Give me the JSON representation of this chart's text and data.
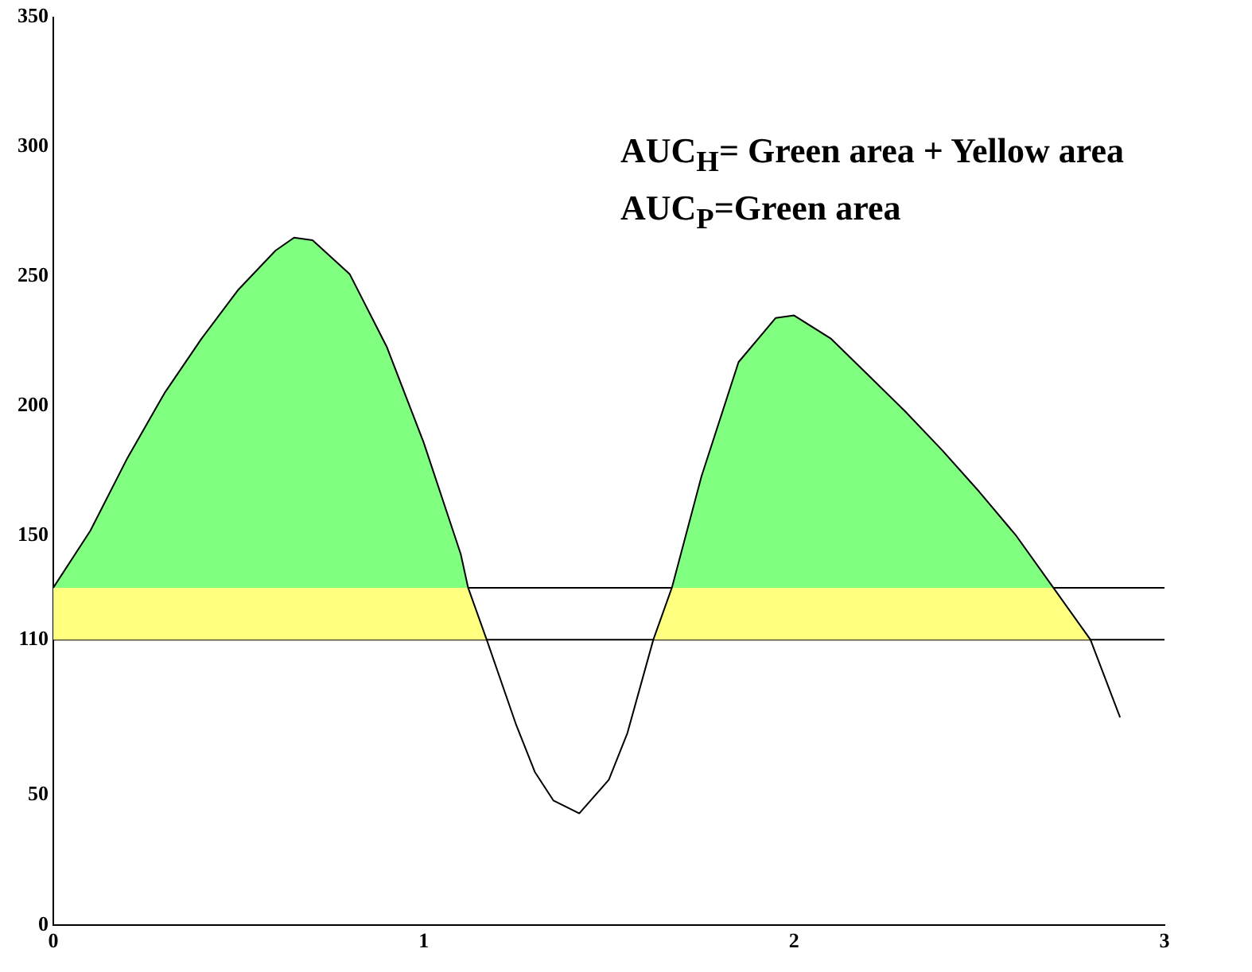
{
  "chart_data": {
    "type": "line",
    "x": [
      0,
      0.1,
      0.2,
      0.3,
      0.4,
      0.5,
      0.6,
      0.65,
      0.7,
      0.8,
      0.9,
      1.0,
      1.1,
      1.12,
      1.17,
      1.25,
      1.3,
      1.35,
      1.42,
      1.5,
      1.55,
      1.62,
      1.67,
      1.75,
      1.85,
      1.95,
      2.0,
      2.1,
      2.2,
      2.3,
      2.4,
      2.5,
      2.6,
      2.7,
      2.8,
      2.88
    ],
    "series": [
      {
        "color": "#000000",
        "values": [
          130,
          152,
          180,
          205,
          226,
          245,
          260,
          265,
          264,
          251,
          223,
          186,
          143,
          130,
          110,
          77,
          59,
          48,
          43,
          56,
          74,
          110,
          130,
          173,
          217,
          234,
          235,
          226,
          212,
          198,
          183,
          167,
          150,
          130,
          110,
          80
        ]
      },
      {
        "type": "area",
        "color": "#80ff80",
        "values": [
          130,
          152,
          180,
          205,
          226,
          245,
          260,
          265,
          264,
          251,
          223,
          186,
          143,
          130,
          null,
          null,
          null,
          null,
          null,
          null,
          null,
          null,
          130,
          173,
          217,
          234,
          235,
          226,
          212,
          198,
          183,
          167,
          150,
          130,
          null,
          null
        ]
      },
      {
        "type": "area",
        "color": "#ffff80",
        "x": [
          0,
          1.12,
          1.17,
          1.4,
          1.62,
          1.67,
          2.7,
          2.8
        ],
        "values": [
          130,
          130,
          110,
          null,
          110,
          130,
          130,
          110
        ]
      }
    ],
    "ref_lines": [
      {
        "axis": "y",
        "value": 110,
        "color": "#000000"
      },
      {
        "axis": "y",
        "value": 130,
        "color": "#000000"
      }
    ],
    "xlim": [
      0,
      3
    ],
    "xticks": [
      0,
      1,
      2,
      3
    ],
    "ylim": [
      0,
      350
    ],
    "yticks": [
      0,
      50,
      110,
      150,
      200,
      250,
      300,
      350
    ],
    "annotations": [
      "AUC$_{H}$= Green area + Yellow area",
      "AUC$_{P}$=Green area"
    ]
  }
}
